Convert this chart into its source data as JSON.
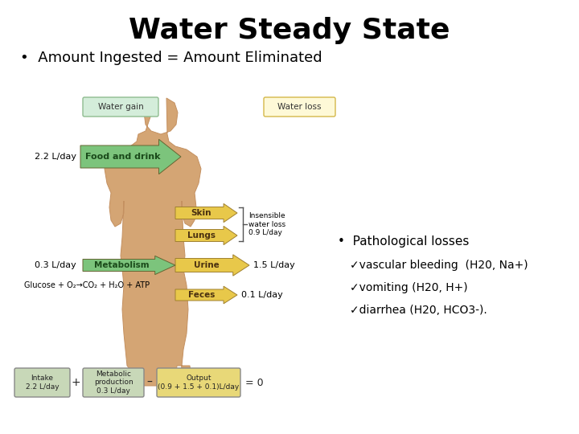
{
  "title": "Water Steady State",
  "bullet1": "•  Amount Ingested = Amount Eliminated",
  "bullet2": "•  Pathological losses",
  "check1": "✓vascular bleeding  (H20, Na+)",
  "check2": "✓vomiting (H20, H+)",
  "check3": "✓diarrhea (H20, HCO3-).",
  "bg_color": "#ffffff",
  "title_color": "#000000",
  "body_color": "#000000",
  "water_gain_label": "Water gain",
  "water_loss_label": "Water loss",
  "food_drink_label": "Food and drink",
  "metabolism_label": "Metabolism",
  "skin_label": "Skin",
  "lungs_label": "Lungs",
  "urine_label": "Urine",
  "feces_label": "Feces",
  "food_vol": "2.2 L/day",
  "metabolism_vol": "0.3 L/day",
  "urine_vol": "1.5 L/day",
  "feces_vol": "0.1 L/day",
  "insensible_label": "Insensible\nwater loss\n0.9 L/day",
  "glucose_eq": "Glucose + O₂→CO₂ + H₂O + ATP",
  "intake_label": "Intake\n2.2 L/day",
  "metab_prod_label": "Metabolic\nproduction\n0.3 L/day",
  "output_label": "Output\n(0.9 + 1.5 + 0.1)L/day",
  "green_box_color": "#d4edda",
  "green_border_color": "#8fbc8f",
  "green_arrow_color": "#7cc47c",
  "yellow_box_color": "#fef9d7",
  "yellow_border_color": "#d4b84a",
  "yellow_arrow_color": "#e8c84a",
  "body_skin_color": "#d4a574",
  "summary_green_color": "#c8d8b8",
  "summary_yellow_color": "#e8d878"
}
